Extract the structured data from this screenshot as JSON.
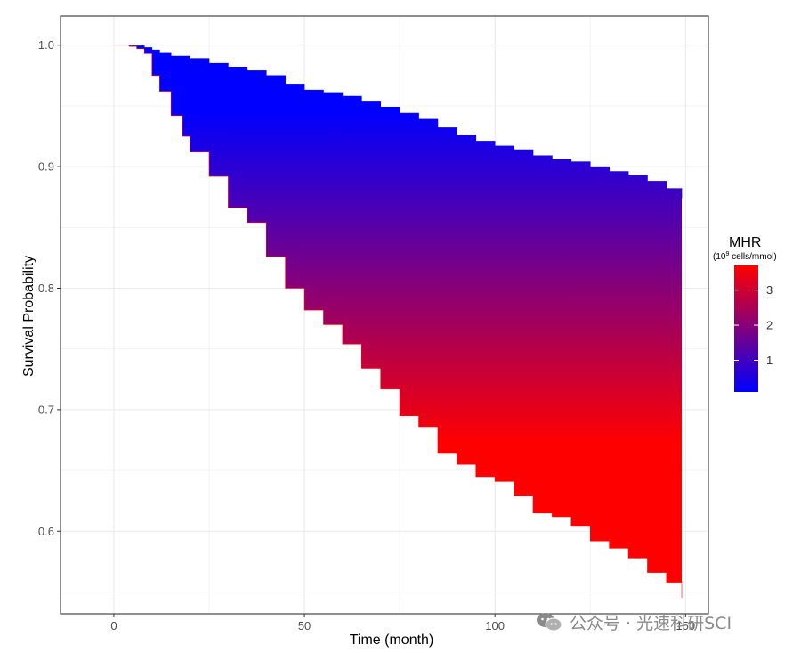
{
  "chart_data": {
    "type": "area",
    "xlabel": "Time (month)",
    "ylabel": "Survival Probability",
    "xlim": [
      -14,
      156
    ],
    "ylim": [
      0.532,
      1.024
    ],
    "x_ticks": [
      0,
      50,
      100,
      150
    ],
    "y_ticks": [
      0.6,
      0.7,
      0.8,
      0.9,
      1.0
    ],
    "y_tick_labels": [
      "0.6",
      "0.7",
      "0.8",
      "0.9",
      "1.0"
    ],
    "grid": true,
    "legend": {
      "title": "MHR",
      "subtitle_base": "(10",
      "subtitle_exp": "9",
      "subtitle_rest": " cells/mmol)",
      "ticks": [
        1,
        2,
        3
      ],
      "range": [
        0.1,
        3.7
      ],
      "color_low": "#0000ff",
      "color_high": "#ff0000",
      "position": "right"
    },
    "series": [
      {
        "name": "upper",
        "color": "#0000ff",
        "x": [
          0,
          4,
          8,
          10,
          12,
          15,
          20,
          25,
          30,
          35,
          40,
          45,
          50,
          55,
          60,
          65,
          70,
          75,
          80,
          85,
          90,
          95,
          100,
          105,
          110,
          115,
          120,
          125,
          130,
          135,
          140,
          145,
          149
        ],
        "y": [
          1.0,
          0.9995,
          0.998,
          0.996,
          0.994,
          0.991,
          0.989,
          0.985,
          0.982,
          0.979,
          0.975,
          0.968,
          0.963,
          0.961,
          0.958,
          0.954,
          0.949,
          0.944,
          0.939,
          0.932,
          0.926,
          0.921,
          0.917,
          0.914,
          0.909,
          0.906,
          0.904,
          0.9,
          0.896,
          0.893,
          0.888,
          0.882,
          0.874
        ]
      },
      {
        "name": "lower",
        "color": "#ff0000",
        "x": [
          0,
          4,
          6,
          8,
          10,
          12,
          15,
          18,
          20,
          25,
          30,
          35,
          40,
          45,
          50,
          55,
          60,
          65,
          70,
          75,
          80,
          85,
          90,
          95,
          100,
          105,
          110,
          115,
          120,
          125,
          130,
          135,
          140,
          145,
          149
        ],
        "y": [
          1.0,
          0.999,
          0.997,
          0.993,
          0.975,
          0.962,
          0.942,
          0.925,
          0.912,
          0.892,
          0.866,
          0.854,
          0.826,
          0.8,
          0.782,
          0.77,
          0.754,
          0.734,
          0.717,
          0.695,
          0.686,
          0.664,
          0.655,
          0.645,
          0.641,
          0.629,
          0.615,
          0.612,
          0.604,
          0.592,
          0.586,
          0.578,
          0.566,
          0.558,
          0.545
        ]
      }
    ]
  },
  "watermark": {
    "text": "公众号 · 光速科研SCI"
  }
}
